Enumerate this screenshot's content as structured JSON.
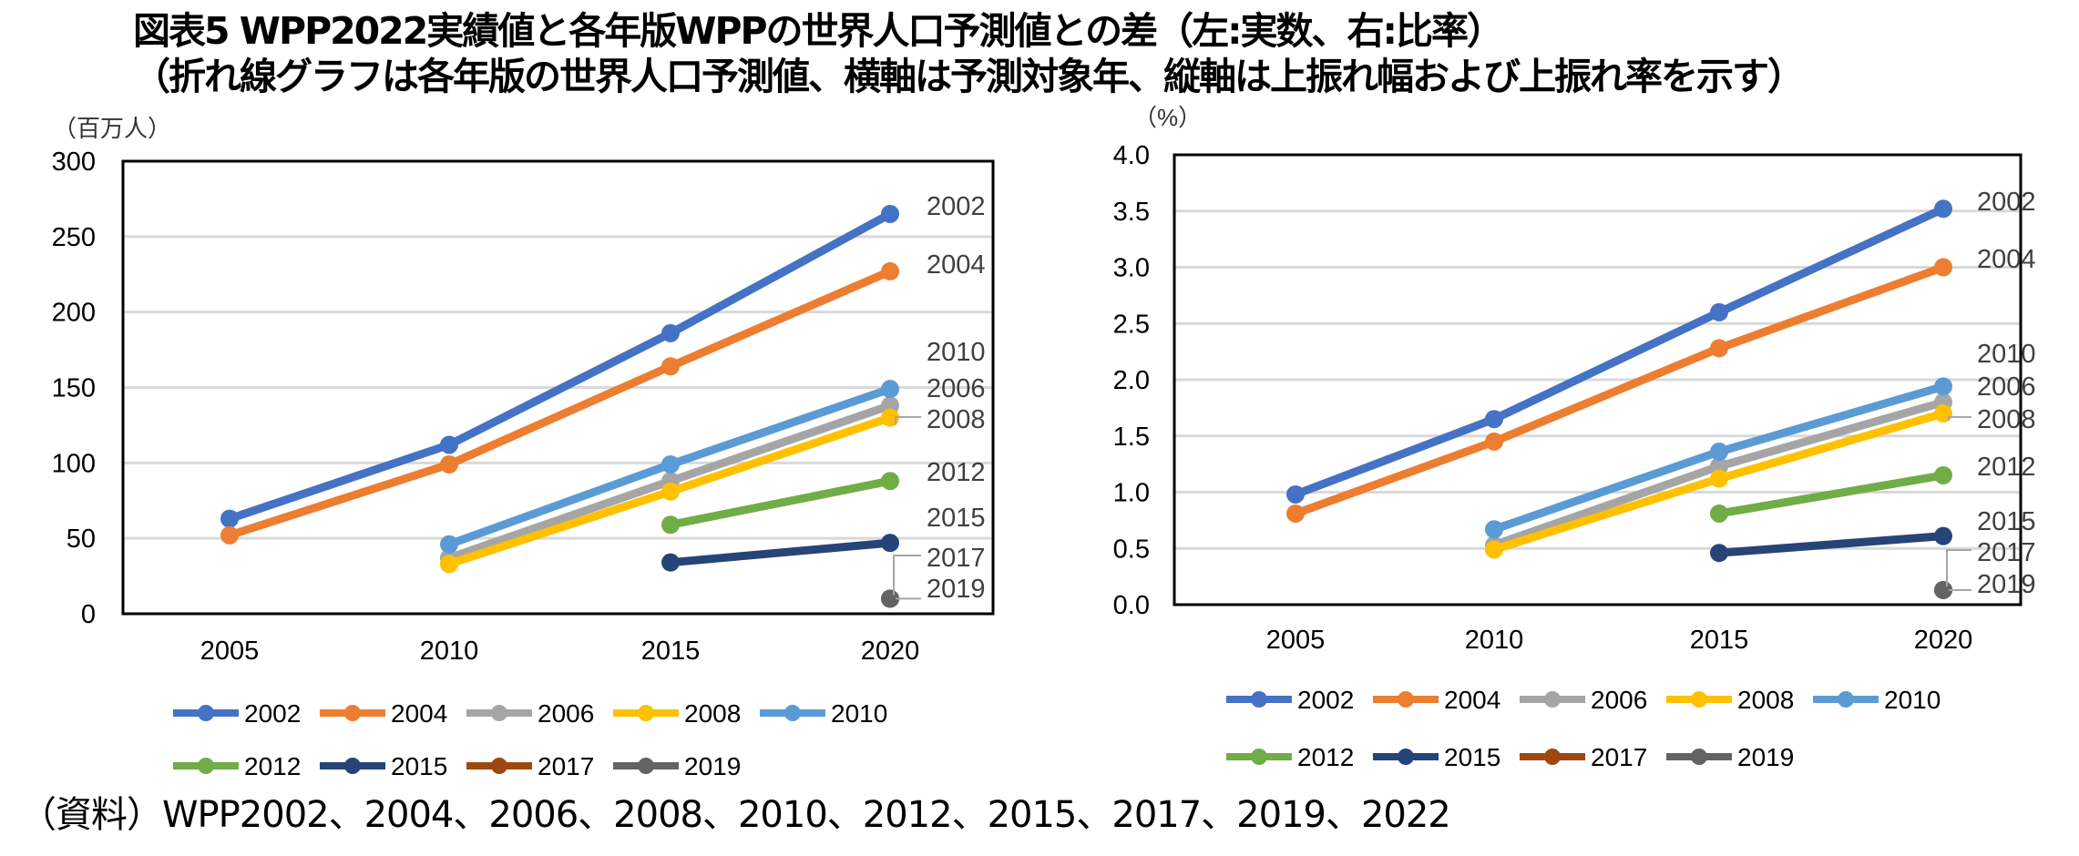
{
  "title": {
    "line1": "図表5  WPP2022実績値と各年版WPPの世界人口予測値との差（左:実数、右:比率）",
    "line2": "（折れ線グラフは各年版の世界人口予測値、横軸は予測対象年、縦軸は上振れ幅および上振れ率を示す）"
  },
  "source": "（資料）WPP2002、2004、2006、2008、2010、2012、2015、2017、2019、2022",
  "chart_data": [
    {
      "type": "line",
      "title": "",
      "unit_label": "（百万人）",
      "xlabel": "",
      "ylabel": "",
      "categories": [
        "2005",
        "2010",
        "2015",
        "2020"
      ],
      "ylim": [
        0,
        300
      ],
      "yticks": [
        "0",
        "50",
        "100",
        "150",
        "200",
        "250",
        "300"
      ],
      "grid": true,
      "legend": "bottom",
      "series": [
        {
          "name": "2002",
          "color": "#4472C4",
          "values": [
            63,
            112,
            186,
            265
          ]
        },
        {
          "name": "2004",
          "color": "#ED7D31",
          "values": [
            52,
            99,
            164,
            227
          ]
        },
        {
          "name": "2006",
          "color": "#A5A5A5",
          "values": [
            null,
            37,
            88,
            138
          ]
        },
        {
          "name": "2008",
          "color": "#FFC000",
          "values": [
            null,
            33,
            81,
            130
          ]
        },
        {
          "name": "2010",
          "color": "#5B9BD5",
          "values": [
            null,
            46,
            99,
            149
          ]
        },
        {
          "name": "2012",
          "color": "#70AD47",
          "values": [
            null,
            null,
            59,
            88
          ]
        },
        {
          "name": "2015",
          "color": "#264478",
          "values": [
            null,
            null,
            34,
            47
          ]
        },
        {
          "name": "2017",
          "color": "#9E480E",
          "values": [
            null,
            null,
            null,
            10
          ]
        },
        {
          "name": "2019",
          "color": "#636363",
          "values": [
            null,
            null,
            null,
            10
          ]
        }
      ]
    },
    {
      "type": "line",
      "title": "",
      "unit_label": "（%）",
      "xlabel": "",
      "ylabel": "",
      "categories": [
        "2005",
        "2010",
        "2015",
        "2020"
      ],
      "ylim": [
        0,
        4.0
      ],
      "yticks": [
        "0.0",
        "0.5",
        "1.0",
        "1.5",
        "2.0",
        "2.5",
        "3.0",
        "3.5",
        "4.0"
      ],
      "grid": true,
      "legend": "bottom",
      "series": [
        {
          "name": "2002",
          "color": "#4472C4",
          "values": [
            0.98,
            1.65,
            2.6,
            3.52
          ]
        },
        {
          "name": "2004",
          "color": "#ED7D31",
          "values": [
            0.81,
            1.45,
            2.28,
            3.0
          ]
        },
        {
          "name": "2006",
          "color": "#A5A5A5",
          "values": [
            null,
            0.53,
            1.23,
            1.8
          ]
        },
        {
          "name": "2008",
          "color": "#FFC000",
          "values": [
            null,
            0.49,
            1.12,
            1.7
          ]
        },
        {
          "name": "2010",
          "color": "#5B9BD5",
          "values": [
            null,
            0.67,
            1.36,
            1.94
          ]
        },
        {
          "name": "2012",
          "color": "#70AD47",
          "values": [
            null,
            null,
            0.81,
            1.15
          ]
        },
        {
          "name": "2015",
          "color": "#264478",
          "values": [
            null,
            null,
            0.46,
            0.61
          ]
        },
        {
          "name": "2017",
          "color": "#9E480E",
          "values": [
            null,
            null,
            null,
            0.13
          ]
        },
        {
          "name": "2019",
          "color": "#636363",
          "values": [
            null,
            null,
            null,
            0.13
          ]
        }
      ]
    }
  ]
}
